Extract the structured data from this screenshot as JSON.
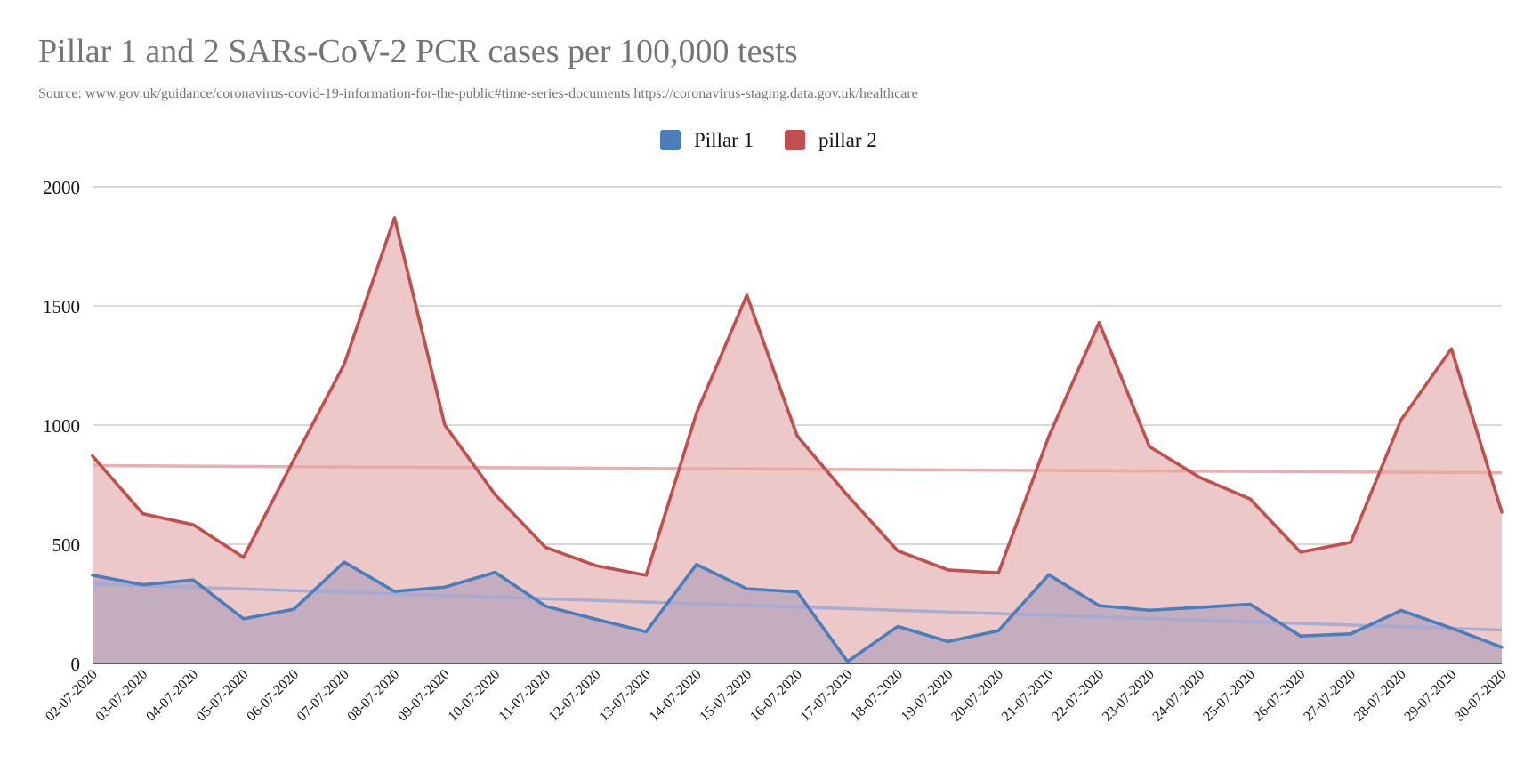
{
  "chart_data": {
    "type": "area",
    "title": "Pillar 1 and 2 SARs-CoV-2 PCR cases per 100,000 tests",
    "subtitle": "Source: www.gov.uk/guidance/coronavirus-covid-19-information-for-the-public#time-series-documents  https://coronavirus-staging.data.gov.uk/healthcare",
    "xlabel": "",
    "ylabel": "",
    "ylim": [
      0,
      2000
    ],
    "yticks": [
      "0",
      "500",
      "1000",
      "1500",
      "2000"
    ],
    "ytick_values": [
      0,
      500,
      1000,
      1500,
      2000
    ],
    "grid": true,
    "legend_position": "top-center",
    "categories": [
      "02-07-2020",
      "03-07-2020",
      "04-07-2020",
      "05-07-2020",
      "06-07-2020",
      "07-07-2020",
      "08-07-2020",
      "09-07-2020",
      "10-07-2020",
      "11-07-2020",
      "12-07-2020",
      "13-07-2020",
      "14-07-2020",
      "15-07-2020",
      "16-07-2020",
      "17-07-2020",
      "18-07-2020",
      "19-07-2020",
      "20-07-2020",
      "21-07-2020",
      "22-07-2020",
      "23-07-2020",
      "24-07-2020",
      "25-07-2020",
      "26-07-2020",
      "27-07-2020",
      "28-07-2020",
      "29-07-2020",
      "30-07-2020"
    ],
    "series": [
      {
        "name": "Pillar 1",
        "color": "#4a7ebb",
        "fill_color": "#c4adbf",
        "trendline_color": "#a3a9d1",
        "trendline": [
          333,
          140
        ],
        "values": [
          370,
          330,
          350,
          187,
          227,
          425,
          302,
          320,
          382,
          240,
          185,
          133,
          415,
          313,
          300,
          8,
          155,
          92,
          137,
          372,
          242,
          223,
          235,
          248,
          115,
          124,
          222,
          148,
          68
        ]
      },
      {
        "name": "pillar 2",
        "color": "#c0504d",
        "fill_color": "#ecc8c9",
        "trendline_color": "#e7a5a4",
        "trendline": [
          830,
          800
        ],
        "values": [
          870,
          628,
          582,
          445,
          855,
          1255,
          1870,
          1000,
          708,
          487,
          410,
          370,
          1050,
          1545,
          955,
          705,
          472,
          392,
          380,
          952,
          1430,
          910,
          780,
          690,
          467,
          508,
          1022,
          1320,
          635
        ]
      }
    ]
  }
}
